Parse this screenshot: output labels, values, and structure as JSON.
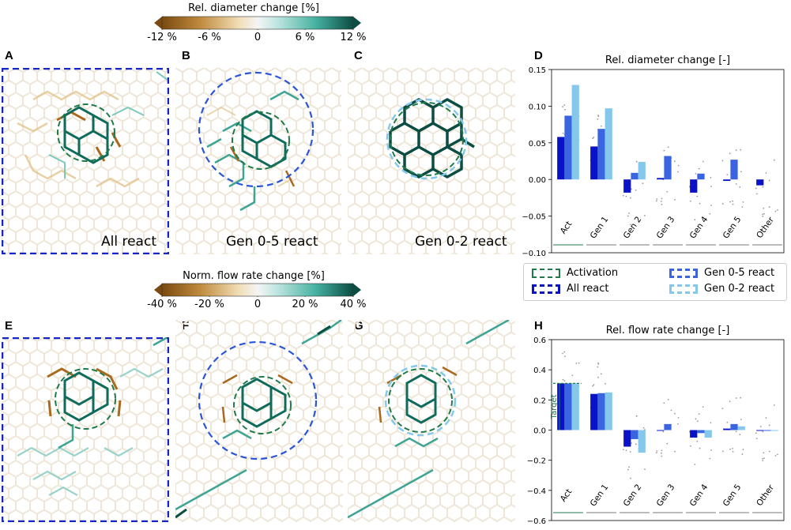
{
  "panels": {
    "A": "A",
    "B": "B",
    "C": "C",
    "D": "D",
    "E": "E",
    "F": "F",
    "G": "G",
    "H": "H"
  },
  "colorbar_top": {
    "title": "Rel. diameter change [%]",
    "ticks": [
      "-12 %",
      "-6 %",
      "0",
      "6 %",
      "12 %"
    ]
  },
  "colorbar_bottom": {
    "title": "Norm. flow rate change [%]",
    "ticks": [
      "-40 %",
      "-20 %",
      "0",
      "20 %",
      "40 %"
    ]
  },
  "network_labels": {
    "A": "All react",
    "B": "Gen 0-5 react",
    "C": "Gen 0-2 react"
  },
  "legend": {
    "activation": "Activation",
    "all": "All react",
    "gen05": "Gen 0-5 react",
    "gen02": "Gen 0-2 react"
  },
  "colors": {
    "activation": "#1f7a4c",
    "all": "#0a12c8",
    "gen05": "#3a64e0",
    "gen02": "#86c8ec",
    "brown": "#a9691e",
    "teal": "#0f6b5c"
  },
  "chart_data": [
    {
      "type": "bar",
      "title": "Rel. diameter change [-]",
      "categories": [
        "Act",
        "Gen 1",
        "Gen 2",
        "Gen 3",
        "Gen 4",
        "Gen 5",
        "Other"
      ],
      "series": [
        {
          "name": "All react",
          "values": [
            0.058,
            0.045,
            -0.018,
            0.002,
            -0.018,
            -0.002,
            -0.008
          ]
        },
        {
          "name": "Gen 0-5 react",
          "values": [
            0.087,
            0.069,
            0.009,
            0.032,
            0.008,
            0.027,
            null
          ]
        },
        {
          "name": "Gen 0-2 react",
          "values": [
            0.129,
            0.097,
            0.024,
            null,
            null,
            null,
            null
          ]
        }
      ],
      "ylim": [
        -0.1,
        0.15
      ],
      "yticks": [
        "0.15",
        "0.10",
        "0.05",
        "0.00",
        "−0.05",
        "−0.10"
      ],
      "ytick_values": [
        0.15,
        0.1,
        0.05,
        0.0,
        -0.05,
        -0.1
      ]
    },
    {
      "type": "bar",
      "title": "Rel. flow rate change [-]",
      "categories": [
        "Act",
        "Gen 1",
        "Gen 2",
        "Gen 3",
        "Gen 4",
        "Gen 5",
        "Other"
      ],
      "series": [
        {
          "name": "All react",
          "values": [
            0.31,
            0.24,
            -0.11,
            0.0,
            -0.05,
            0.01,
            0.0
          ]
        },
        {
          "name": "Gen 0-5 react",
          "values": [
            0.31,
            0.245,
            -0.06,
            0.04,
            -0.02,
            0.04,
            0.0
          ]
        },
        {
          "name": "Gen 0-2 react",
          "values": [
            0.31,
            0.25,
            -0.15,
            null,
            -0.05,
            0.025,
            0.0
          ]
        }
      ],
      "target": 0.31,
      "target_label": "Target",
      "ylim": [
        -0.6,
        0.6
      ],
      "yticks": [
        "0.6",
        "0.4",
        "0.2",
        "0.0",
        "−0.2",
        "−0.4",
        "−0.6"
      ],
      "ytick_values": [
        0.6,
        0.4,
        0.2,
        0.0,
        -0.2,
        -0.4,
        -0.6
      ]
    }
  ]
}
